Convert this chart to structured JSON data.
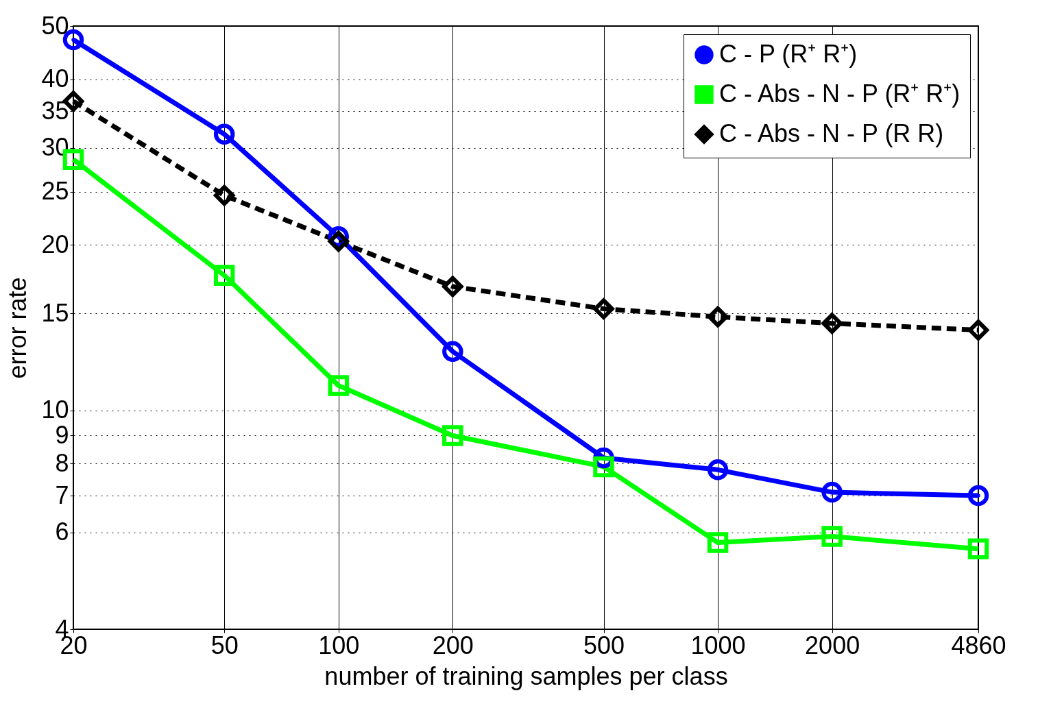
{
  "chart_data": {
    "type": "line",
    "xlabel": "number of training samples per class",
    "ylabel": "error rate",
    "x": [
      20,
      50,
      100,
      200,
      500,
      1000,
      2000,
      4860
    ],
    "series": [
      {
        "name": "C - P (R⁺ R⁺)",
        "color": "#0000ff",
        "marker": "circle",
        "line_style": "solid",
        "values": [
          47.2,
          31.8,
          20.7,
          12.8,
          8.2,
          7.8,
          7.1,
          7.0
        ]
      },
      {
        "name": "C - Abs - N - P (R⁺ R⁺)",
        "color": "#00ff00",
        "marker": "square",
        "line_style": "solid",
        "values": [
          28.6,
          17.6,
          11.1,
          9.0,
          7.9,
          5.75,
          5.9,
          5.6
        ]
      },
      {
        "name": "C - Abs - N - P (R R)",
        "color": "#000000",
        "marker": "diamond",
        "line_style": "dashed",
        "values": [
          36.5,
          24.6,
          20.3,
          16.8,
          15.3,
          14.8,
          14.4,
          14.0
        ]
      }
    ],
    "log": "xy",
    "xlim": [
      20,
      4860
    ],
    "ylim": [
      4,
      50
    ],
    "xticks": [
      20,
      50,
      100,
      200,
      500,
      1000,
      2000,
      4860
    ],
    "yticks": [
      4,
      6,
      7,
      8,
      9,
      10,
      15,
      20,
      25,
      30,
      35,
      40,
      50
    ],
    "grid": true,
    "legend": "top right"
  }
}
